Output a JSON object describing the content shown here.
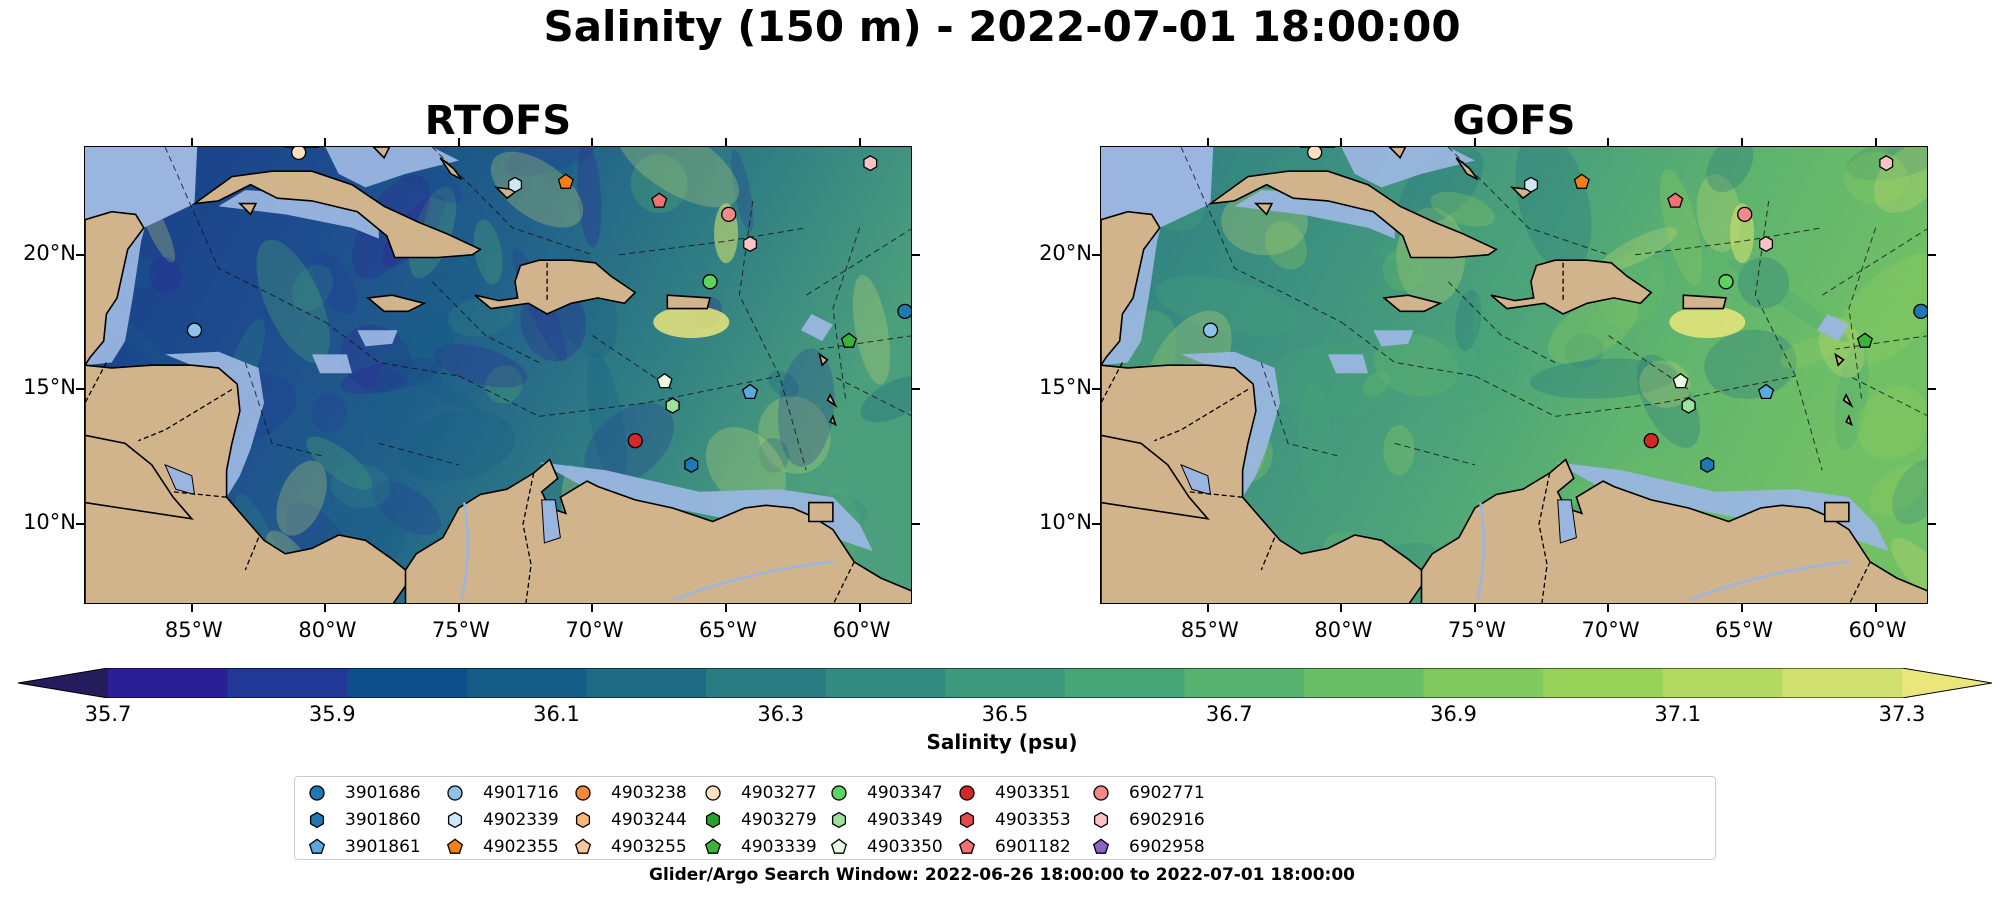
{
  "title": "Salinity (150 m) - 2022-07-01 18:00:00",
  "panels": [
    {
      "title": "RTOFS"
    },
    {
      "title": "GOFS"
    }
  ],
  "lon_ticks": [
    "85°W",
    "80°W",
    "75°W",
    "70°W",
    "65°W",
    "60°W"
  ],
  "lat_ticks": [
    "20°N",
    "15°N",
    "10°N"
  ],
  "map_extent": {
    "lon": [
      -89,
      -58
    ],
    "lat": [
      7,
      24
    ]
  },
  "colorbar": {
    "label": "Salinity (psu)",
    "ticks": [
      "35.7",
      "35.9",
      "36.1",
      "36.3",
      "36.5",
      "36.7",
      "36.9",
      "37.1",
      "37.3"
    ],
    "range": [
      35.7,
      37.3
    ],
    "colormap": "haline",
    "colors": [
      "#241c5c",
      "#2a1f96",
      "#213896",
      "#0f4e8c",
      "#155c86",
      "#1e6a82",
      "#2a7a81",
      "#338a80",
      "#3d987c",
      "#47a677",
      "#56b26e",
      "#6abf66",
      "#80c95e",
      "#98d259",
      "#b3da60",
      "#cfe06e",
      "#eae67c"
    ]
  },
  "legend": {
    "items": [
      {
        "id": "3901686",
        "marker": "circle",
        "color": "#1f77b4"
      },
      {
        "id": "3901860",
        "marker": "hexagon",
        "color": "#1f77b4"
      },
      {
        "id": "3901861",
        "marker": "pentagon",
        "color": "#5aa9e0"
      },
      {
        "id": "4901716",
        "marker": "circle",
        "color": "#8fc2ea"
      },
      {
        "id": "4902339",
        "marker": "hexagon",
        "color": "#cfe6f7"
      },
      {
        "id": "4902355",
        "marker": "pentagon",
        "color": "#f57f17"
      },
      {
        "id": "4903238",
        "marker": "circle",
        "color": "#f5893a"
      },
      {
        "id": "4903244",
        "marker": "hexagon",
        "color": "#fab57a"
      },
      {
        "id": "4903255",
        "marker": "pentagon",
        "color": "#fcc796"
      },
      {
        "id": "4903277",
        "marker": "circle",
        "color": "#fde0bf"
      },
      {
        "id": "4903279",
        "marker": "hexagon",
        "color": "#2ca02c"
      },
      {
        "id": "4903339",
        "marker": "pentagon",
        "color": "#3bb33b"
      },
      {
        "id": "4903347",
        "marker": "circle",
        "color": "#5fd35f"
      },
      {
        "id": "4903349",
        "marker": "hexagon",
        "color": "#9be39b"
      },
      {
        "id": "4903350",
        "marker": "pentagon",
        "color": "#e8fbe0"
      },
      {
        "id": "4903351",
        "marker": "circle",
        "color": "#d62728"
      },
      {
        "id": "4903353",
        "marker": "hexagon",
        "color": "#e34a4a"
      },
      {
        "id": "6901182",
        "marker": "pentagon",
        "color": "#f07074"
      },
      {
        "id": "6902771",
        "marker": "circle",
        "color": "#f4898b"
      },
      {
        "id": "6902916",
        "marker": "hexagon",
        "color": "#f9c3c4"
      },
      {
        "id": "6902958",
        "marker": "pentagon",
        "color": "#8c62c4"
      }
    ]
  },
  "floats": [
    {
      "id": "4903277",
      "marker": "circle",
      "color": "#fde0bf",
      "lon": -81.0,
      "lat": 23.8
    },
    {
      "id": "6902916",
      "marker": "hexagon",
      "color": "#f9c3c4",
      "lon": -59.6,
      "lat": 23.4
    },
    {
      "id": "4902339",
      "marker": "hexagon",
      "color": "#cfe6f7",
      "lon": -72.9,
      "lat": 22.6
    },
    {
      "id": "4902355",
      "marker": "pentagon",
      "color": "#f57f17",
      "lon": -71.0,
      "lat": 22.7
    },
    {
      "id": "6901182",
      "marker": "pentagon",
      "color": "#f07074",
      "lon": -67.5,
      "lat": 22.0
    },
    {
      "id": "6902771",
      "marker": "circle",
      "color": "#f4898b",
      "lon": -64.9,
      "lat": 21.5
    },
    {
      "id": "6902916",
      "marker": "hexagon",
      "color": "#f9c3c4",
      "lon": -64.1,
      "lat": 20.4
    },
    {
      "id": "4903347",
      "marker": "circle",
      "color": "#5fd35f",
      "lon": -65.6,
      "lat": 19.0
    },
    {
      "id": "3901686",
      "marker": "circle",
      "color": "#1f77b4",
      "lon": -58.3,
      "lat": 17.9
    },
    {
      "id": "4901716",
      "marker": "circle",
      "color": "#8fc2ea",
      "lon": -84.9,
      "lat": 17.2
    },
    {
      "id": "4903339",
      "marker": "pentagon",
      "color": "#3bb33b",
      "lon": -60.4,
      "lat": 16.8
    },
    {
      "id": "4903350",
      "marker": "pentagon",
      "color": "#e8fbe0",
      "lon": -67.3,
      "lat": 15.3
    },
    {
      "id": "3901861",
      "marker": "pentagon",
      "color": "#5aa9e0",
      "lon": -64.1,
      "lat": 14.9
    },
    {
      "id": "4903349",
      "marker": "hexagon",
      "color": "#9be39b",
      "lon": -67.0,
      "lat": 14.4
    },
    {
      "id": "4903351",
      "marker": "circle",
      "color": "#d62728",
      "lon": -68.4,
      "lat": 13.1
    },
    {
      "id": "3901860",
      "marker": "hexagon",
      "color": "#1f77b4",
      "lon": -66.3,
      "lat": 12.2
    }
  ],
  "footnote": "Glider/Argo Search Window: 2022-06-26 18:00:00 to 2022-07-01 18:00:00"
}
